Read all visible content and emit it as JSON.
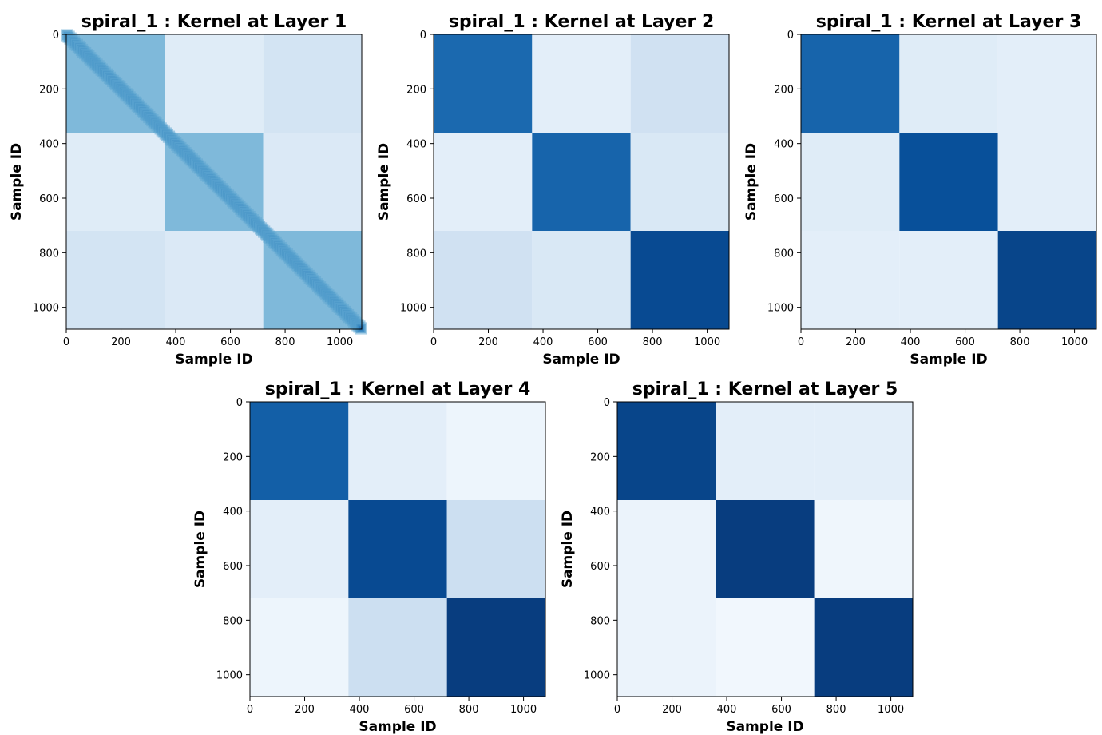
{
  "figure": {
    "background": "#ffffff",
    "colormap": "Blues",
    "colormap_stops": [
      "#f7fbff",
      "#deebf7",
      "#c6dbef",
      "#9ecae1",
      "#6baed6",
      "#4292c6",
      "#2171b5",
      "#08519c",
      "#08306b"
    ]
  },
  "chart_data": [
    {
      "type": "heatmap",
      "title": "spiral_1 : Kernel at Layer 1",
      "xlabel": "Sample ID",
      "ylabel": "Sample ID",
      "xlim": [
        0,
        1080
      ],
      "ylim": [
        1080,
        0
      ],
      "xticks": [
        0,
        200,
        400,
        600,
        800,
        1000
      ],
      "yticks": [
        0,
        200,
        400,
        600,
        800,
        1000
      ],
      "xtick_labels": [
        "0",
        "200",
        "400",
        "600",
        "800",
        "1000"
      ],
      "ytick_labels": [
        "0",
        "200",
        "400",
        "600",
        "800",
        "1000"
      ],
      "block_edges": [
        0,
        360,
        720,
        1080
      ],
      "pattern": "diagonal",
      "block_intensity": [
        [
          0.45,
          0.12,
          0.18
        ],
        [
          0.12,
          0.45,
          0.14
        ],
        [
          0.18,
          0.14,
          0.45
        ]
      ],
      "diagonal_peak": 0.85
    },
    {
      "type": "heatmap",
      "title": "spiral_1 : Kernel at Layer 2",
      "xlabel": "Sample ID",
      "ylabel": "Sample ID",
      "xlim": [
        0,
        1080
      ],
      "ylim": [
        1080,
        0
      ],
      "xticks": [
        0,
        200,
        400,
        600,
        800,
        1000
      ],
      "yticks": [
        0,
        200,
        400,
        600,
        800,
        1000
      ],
      "xtick_labels": [
        "0",
        "200",
        "400",
        "600",
        "800",
        "1000"
      ],
      "ytick_labels": [
        "0",
        "200",
        "400",
        "600",
        "800",
        "1000"
      ],
      "block_edges": [
        0,
        360,
        720,
        1080
      ],
      "pattern": "block",
      "block_intensity": [
        [
          0.78,
          0.1,
          0.2
        ],
        [
          0.1,
          0.8,
          0.15
        ],
        [
          0.2,
          0.15,
          0.9
        ]
      ]
    },
    {
      "type": "heatmap",
      "title": "spiral_1 : Kernel at Layer 3",
      "xlabel": "Sample ID",
      "ylabel": "Sample ID",
      "xlim": [
        0,
        1080
      ],
      "ylim": [
        1080,
        0
      ],
      "xticks": [
        0,
        200,
        400,
        600,
        800,
        1000
      ],
      "yticks": [
        0,
        200,
        400,
        600,
        800,
        1000
      ],
      "xtick_labels": [
        "0",
        "200",
        "400",
        "600",
        "800",
        "1000"
      ],
      "ytick_labels": [
        "0",
        "200",
        "400",
        "600",
        "800",
        "1000"
      ],
      "block_edges": [
        0,
        360,
        720,
        1080
      ],
      "pattern": "block",
      "block_intensity": [
        [
          0.8,
          0.12,
          0.1
        ],
        [
          0.12,
          0.88,
          0.1
        ],
        [
          0.1,
          0.1,
          0.92
        ]
      ]
    },
    {
      "type": "heatmap",
      "title": "spiral_1 : Kernel at Layer 4",
      "xlabel": "Sample ID",
      "ylabel": "Sample ID",
      "xlim": [
        0,
        1080
      ],
      "ylim": [
        1080,
        0
      ],
      "xticks": [
        0,
        200,
        400,
        600,
        800,
        1000
      ],
      "yticks": [
        0,
        200,
        400,
        600,
        800,
        1000
      ],
      "xtick_labels": [
        "0",
        "200",
        "400",
        "600",
        "800",
        "1000"
      ],
      "ytick_labels": [
        "0",
        "200",
        "400",
        "600",
        "800",
        "1000"
      ],
      "block_edges": [
        0,
        360,
        720,
        1080
      ],
      "pattern": "block",
      "block_intensity": [
        [
          0.82,
          0.1,
          0.05
        ],
        [
          0.1,
          0.9,
          0.22
        ],
        [
          0.05,
          0.22,
          0.95
        ]
      ]
    },
    {
      "type": "heatmap",
      "title": "spiral_1 : Kernel at Layer 5",
      "xlabel": "Sample ID",
      "ylabel": "Sample ID",
      "xlim": [
        0,
        1080
      ],
      "ylim": [
        1080,
        0
      ],
      "xticks": [
        0,
        200,
        400,
        600,
        800,
        1000
      ],
      "yticks": [
        0,
        200,
        400,
        600,
        800,
        1000
      ],
      "xtick_labels": [
        "0",
        "200",
        "400",
        "600",
        "800",
        "1000"
      ],
      "ytick_labels": [
        "0",
        "200",
        "400",
        "600",
        "800",
        "1000"
      ],
      "block_edges": [
        0,
        360,
        720,
        1080
      ],
      "pattern": "block",
      "block_intensity": [
        [
          0.92,
          0.1,
          0.1
        ],
        [
          0.06,
          0.95,
          0.04
        ],
        [
          0.06,
          0.03,
          0.95
        ]
      ]
    }
  ]
}
